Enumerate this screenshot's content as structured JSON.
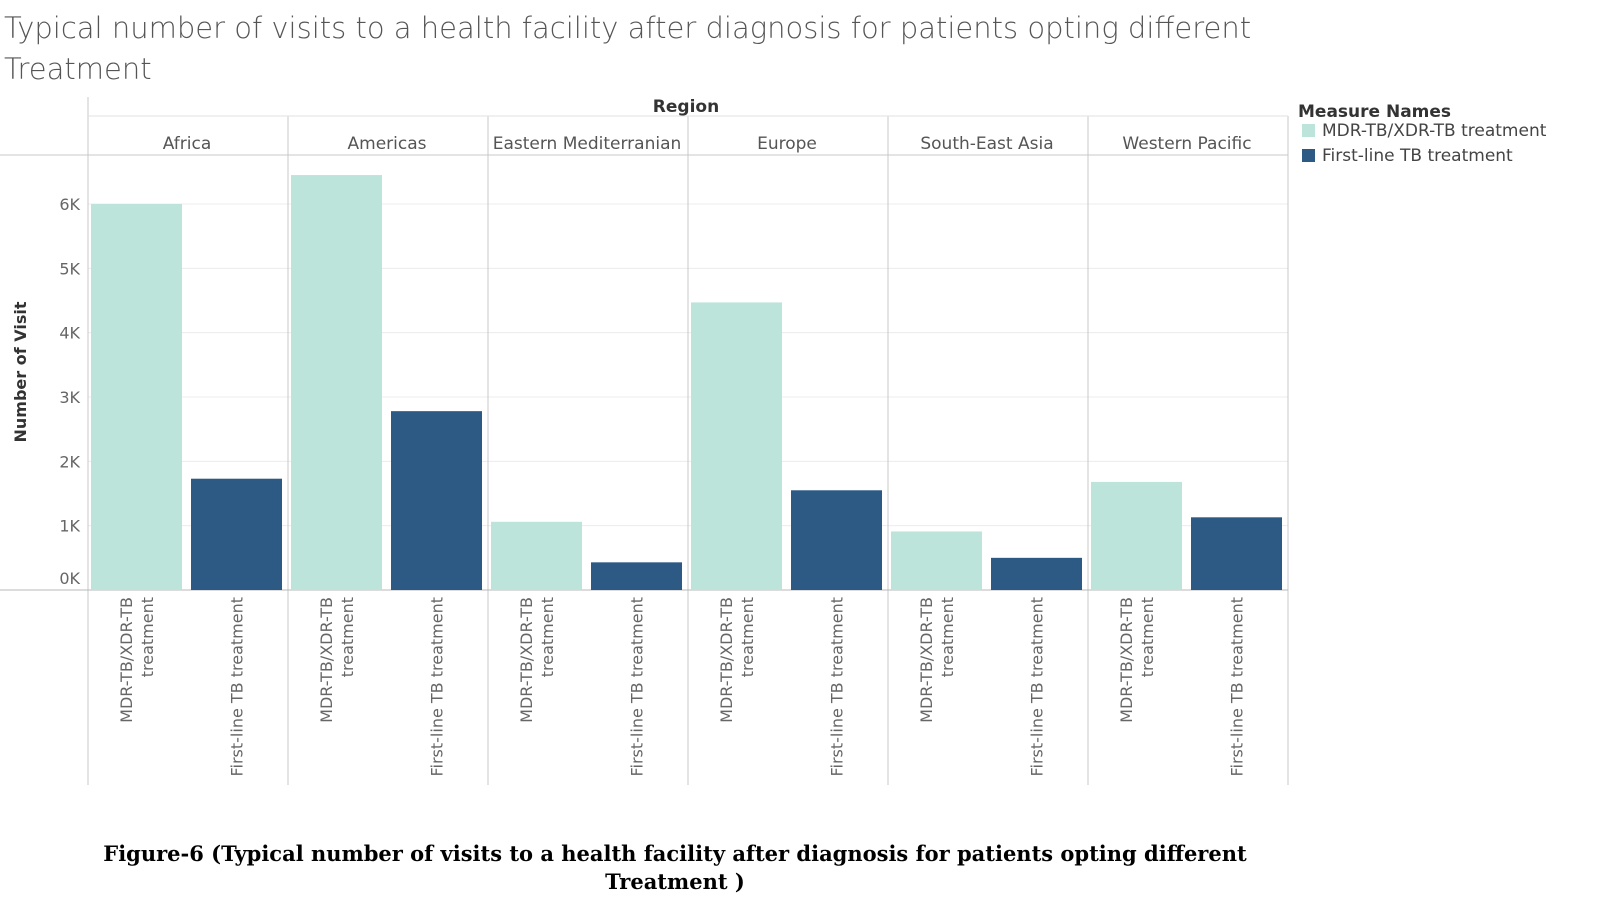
{
  "title": "Typical number of visits to a health facility after diagnosis for patients opting different Treatment",
  "caption_line1": "Figure-6 (Typical number of visits to a health facility after diagnosis for patients opting different",
  "caption_line2": "Treatment )",
  "chart_data": {
    "type": "bar",
    "column_header": "Region",
    "ylabel": "Number of Visit",
    "ylim": [
      0,
      7000
    ],
    "yticks": [
      0,
      1000,
      2000,
      3000,
      4000,
      5000,
      6000
    ],
    "ytick_labels": [
      "0K",
      "1K",
      "2K",
      "3K",
      "4K",
      "5K",
      "6K"
    ],
    "legend_title": "Measure Names",
    "legend_position": "top-right",
    "categories": [
      "Africa",
      "Americas",
      "Eastern Mediterranian",
      "Europe",
      "South-East Asia",
      "Western Pacific"
    ],
    "series": [
      {
        "name": "MDR-TB/XDR-TB treatment",
        "label_lines": [
          "MDR-TB/XDR-TB",
          "treatment"
        ],
        "color": "#bce4da",
        "values": [
          6000,
          6450,
          1060,
          4470,
          910,
          1680
        ]
      },
      {
        "name": "First-line TB treatment",
        "label_lines": [
          "First-line TB treatment"
        ],
        "color": "#2d5a85",
        "values": [
          1730,
          2780,
          430,
          1550,
          500,
          1130
        ]
      }
    ],
    "grid": true
  }
}
